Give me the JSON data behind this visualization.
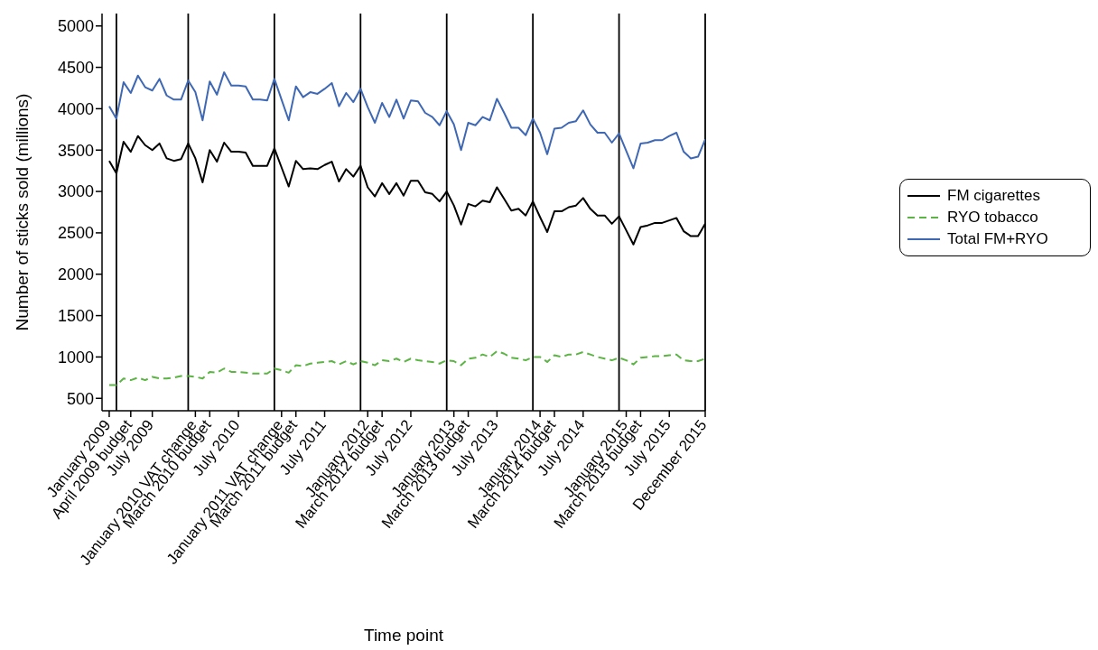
{
  "chart_data": {
    "type": "line",
    "xlabel": "Time point",
    "ylabel": "Number of sticks sold (millions)",
    "x": [
      "2009-01",
      "2009-02",
      "2009-03",
      "2009-04",
      "2009-05",
      "2009-06",
      "2009-07",
      "2009-08",
      "2009-09",
      "2009-10",
      "2009-11",
      "2009-12",
      "2010-01",
      "2010-02",
      "2010-03",
      "2010-04",
      "2010-05",
      "2010-06",
      "2010-07",
      "2010-08",
      "2010-09",
      "2010-10",
      "2010-11",
      "2010-12",
      "2011-01",
      "2011-02",
      "2011-03",
      "2011-04",
      "2011-05",
      "2011-06",
      "2011-07",
      "2011-08",
      "2011-09",
      "2011-10",
      "2011-11",
      "2011-12",
      "2012-01",
      "2012-02",
      "2012-03",
      "2012-04",
      "2012-05",
      "2012-06",
      "2012-07",
      "2012-08",
      "2012-09",
      "2012-10",
      "2012-11",
      "2012-12",
      "2013-01",
      "2013-02",
      "2013-03",
      "2013-04",
      "2013-05",
      "2013-06",
      "2013-07",
      "2013-08",
      "2013-09",
      "2013-10",
      "2013-11",
      "2013-12",
      "2014-01",
      "2014-02",
      "2014-03",
      "2014-04",
      "2014-05",
      "2014-06",
      "2014-07",
      "2014-08",
      "2014-09",
      "2014-10",
      "2014-11",
      "2014-12",
      "2015-01",
      "2015-02",
      "2015-03",
      "2015-04",
      "2015-05",
      "2015-06",
      "2015-07",
      "2015-08",
      "2015-09",
      "2015-10",
      "2015-11",
      "2015-12"
    ],
    "series": [
      {
        "name": "FM cigarettes",
        "color": "#000000",
        "line_style": "solid",
        "values": [
          3370,
          3220,
          3600,
          3480,
          3670,
          3560,
          3500,
          3580,
          3400,
          3370,
          3390,
          3580,
          3400,
          3110,
          3500,
          3360,
          3590,
          3480,
          3480,
          3470,
          3310,
          3310,
          3310,
          3520,
          3290,
          3060,
          3370,
          3270,
          3280,
          3270,
          3320,
          3360,
          3120,
          3270,
          3180,
          3310,
          3050,
          2940,
          3100,
          2970,
          3100,
          2950,
          3130,
          3130,
          2990,
          2970,
          2880,
          3000,
          2830,
          2600,
          2850,
          2820,
          2890,
          2870,
          3050,
          2910,
          2770,
          2790,
          2710,
          2880,
          2690,
          2510,
          2760,
          2760,
          2810,
          2830,
          2920,
          2790,
          2710,
          2710,
          2610,
          2700,
          2530,
          2360,
          2570,
          2590,
          2620,
          2620,
          2650,
          2680,
          2520,
          2460,
          2460,
          2610
        ]
      },
      {
        "name": "RYO tobacco",
        "color": "#5bb443",
        "line_style": "dashed",
        "values": [
          660,
          660,
          740,
          720,
          750,
          720,
          760,
          740,
          740,
          750,
          770,
          770,
          760,
          740,
          820,
          810,
          860,
          820,
          820,
          810,
          800,
          800,
          800,
          860,
          840,
          810,
          900,
          890,
          920,
          930,
          940,
          950,
          910,
          950,
          910,
          950,
          930,
          900,
          960,
          950,
          980,
          940,
          980,
          960,
          950,
          940,
          920,
          960,
          950,
          900,
          980,
          990,
          1030,
          1000,
          1070,
          1040,
          990,
          980,
          960,
          1000,
          1000,
          940,
          1020,
          1000,
          1030,
          1030,
          1060,
          1030,
          1000,
          980,
          960,
          990,
          960,
          910,
          990,
          1000,
          1010,
          1010,
          1020,
          1030,
          960,
          950,
          950,
          980
        ]
      },
      {
        "name": "Total FM+RYO",
        "color": "#3f68b4",
        "line_style": "solid",
        "values": [
          4030,
          3880,
          4320,
          4190,
          4400,
          4260,
          4220,
          4360,
          4160,
          4110,
          4110,
          4340,
          4200,
          3860,
          4330,
          4170,
          4440,
          4280,
          4280,
          4270,
          4110,
          4110,
          4100,
          4360,
          4110,
          3860,
          4270,
          4140,
          4200,
          4180,
          4240,
          4310,
          4030,
          4190,
          4080,
          4240,
          4020,
          3830,
          4070,
          3900,
          4110,
          3880,
          4100,
          4090,
          3950,
          3900,
          3800,
          3970,
          3810,
          3500,
          3830,
          3800,
          3900,
          3860,
          4120,
          3950,
          3770,
          3770,
          3680,
          3880,
          3710,
          3450,
          3760,
          3770,
          3830,
          3850,
          3980,
          3810,
          3710,
          3710,
          3590,
          3700,
          3490,
          3280,
          3580,
          3590,
          3620,
          3620,
          3670,
          3710,
          3480,
          3400,
          3420,
          3630
        ]
      }
    ],
    "xlim": [
      "2008-12",
      "2015-12"
    ],
    "xticks": [
      {
        "value": "2009-01",
        "label": "January 2009"
      },
      {
        "value": "2009-04",
        "label": "April 2009 budget"
      },
      {
        "value": "2009-07",
        "label": "July 2009"
      },
      {
        "value": "2010-01",
        "label": "January 2010 VAT change"
      },
      {
        "value": "2010-03",
        "label": "March 2010 budget"
      },
      {
        "value": "2010-07",
        "label": "July 2010"
      },
      {
        "value": "2011-01",
        "label": "January 2011 VAT change"
      },
      {
        "value": "2011-03",
        "label": "March 2011 budget"
      },
      {
        "value": "2011-07",
        "label": "July 2011"
      },
      {
        "value": "2012-01",
        "label": "January 2012"
      },
      {
        "value": "2012-03",
        "label": "March 2012 budget"
      },
      {
        "value": "2012-07",
        "label": "July 2012"
      },
      {
        "value": "2013-01",
        "label": "January 2013"
      },
      {
        "value": "2013-03",
        "label": "March 2013 budget"
      },
      {
        "value": "2013-07",
        "label": "July 2013"
      },
      {
        "value": "2014-01",
        "label": "January 2014"
      },
      {
        "value": "2014-03",
        "label": "March 2014 budget"
      },
      {
        "value": "2014-07",
        "label": "July 2014"
      },
      {
        "value": "2015-01",
        "label": "January 2015"
      },
      {
        "value": "2015-03",
        "label": "March 2015 budget"
      },
      {
        "value": "2015-07",
        "label": "July 2015"
      },
      {
        "value": "2015-12",
        "label": "December 2015"
      }
    ],
    "ylim": [
      350,
      5150
    ],
    "yticks": [
      500,
      1000,
      1500,
      2000,
      2500,
      3000,
      3500,
      4000,
      4500,
      5000
    ],
    "ref_lines": [
      {
        "axis": "x",
        "value": "2009-02",
        "color": "#000000"
      },
      {
        "axis": "x",
        "value": "2009-12",
        "color": "#000000"
      },
      {
        "axis": "x",
        "value": "2010-12",
        "color": "#000000"
      },
      {
        "axis": "x",
        "value": "2011-12",
        "color": "#000000"
      },
      {
        "axis": "x",
        "value": "2012-12",
        "color": "#000000"
      },
      {
        "axis": "x",
        "value": "2013-12",
        "color": "#000000"
      },
      {
        "axis": "x",
        "value": "2014-12",
        "color": "#000000"
      },
      {
        "axis": "x",
        "value": "2015-12",
        "color": "#000000"
      }
    ],
    "legend": "right"
  }
}
